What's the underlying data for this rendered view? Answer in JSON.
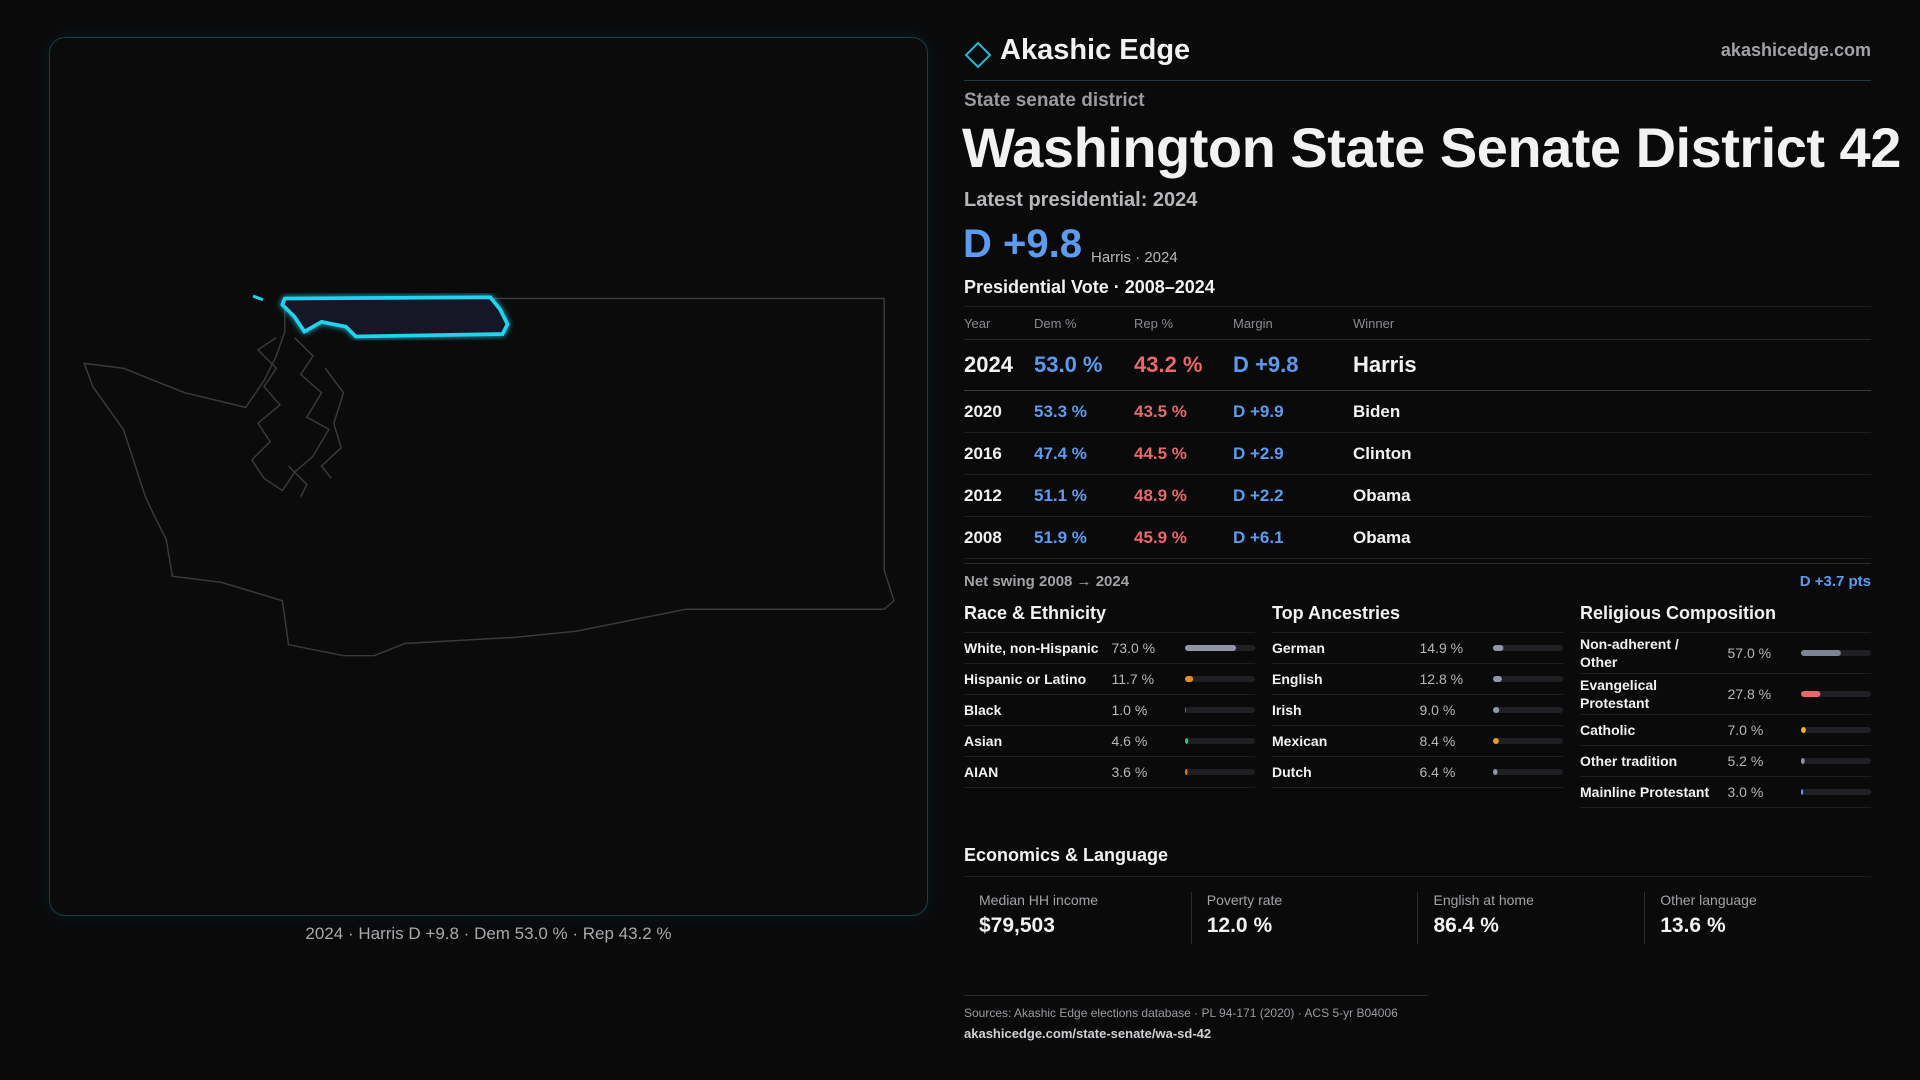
{
  "header": {
    "brand": "Akashic Edge",
    "site": "akashicedge.com"
  },
  "district": {
    "kicker": "State senate district",
    "title": "Washington State Senate District 42",
    "subtitle": "Latest presidential: 2024",
    "margin": "D +9.8",
    "margin_note": "Harris · 2024"
  },
  "map": {
    "caption": "2024 · Harris D +9.8 · Dem 53.0 % · Rep 43.2 %"
  },
  "vote_table": {
    "title": "Presidential Vote · 2008–2024",
    "columns": [
      "Year",
      "Dem %",
      "Rep %",
      "Margin",
      "Winner"
    ],
    "rows": [
      [
        "2024",
        "53.0 %",
        "43.2 %",
        "D +9.8",
        "Harris"
      ],
      [
        "2020",
        "53.3 %",
        "43.5 %",
        "D +9.9",
        "Biden"
      ],
      [
        "2016",
        "47.4 %",
        "44.5 %",
        "D +2.9",
        "Clinton"
      ],
      [
        "2012",
        "51.1 %",
        "48.9 %",
        "D +2.2",
        "Obama"
      ],
      [
        "2008",
        "51.9 %",
        "45.9 %",
        "D +6.1",
        "Obama"
      ]
    ]
  },
  "swing": {
    "label": "Net swing 2008 → 2024",
    "value": "D +3.7 pts"
  },
  "composition": [
    {
      "title": "Race & Ethnicity",
      "items": [
        {
          "label": "White, non-Hispanic",
          "value": 73.0,
          "value_label": "73.0 %",
          "color": "#8f97a8"
        },
        {
          "label": "Hispanic or Latino",
          "value": 11.7,
          "value_label": "11.7 %",
          "color": "#e0902a"
        },
        {
          "label": "Black",
          "value": 1.0,
          "value_label": "1.0 %",
          "color": "#5b9cf0"
        },
        {
          "label": "Asian",
          "value": 4.6,
          "value_label": "4.6 %",
          "color": "#34c27a"
        },
        {
          "label": "AIAN",
          "value": 3.6,
          "value_label": "3.6 %",
          "color": "#e07a2a"
        }
      ]
    },
    {
      "title": "Top Ancestries",
      "items": [
        {
          "label": "German",
          "value": 14.9,
          "value_label": "14.9 %",
          "color": "#8f97a8"
        },
        {
          "label": "English",
          "value": 12.8,
          "value_label": "12.8 %",
          "color": "#8f97a8"
        },
        {
          "label": "Irish",
          "value": 9.0,
          "value_label": "9.0 %",
          "color": "#8f97a8"
        },
        {
          "label": "Mexican",
          "value": 8.4,
          "value_label": "8.4 %",
          "color": "#e0a02a"
        },
        {
          "label": "Dutch",
          "value": 6.4,
          "value_label": "6.4 %",
          "color": "#8f97a8"
        }
      ]
    },
    {
      "title": "Religious Composition",
      "items": [
        {
          "label": "Non-adherent / Other",
          "value": 57.0,
          "value_label": "57.0 %",
          "color": "#7d8494"
        },
        {
          "label": "Evangelical Protestant",
          "value": 27.8,
          "value_label": "27.8 %",
          "color": "#e8686b"
        },
        {
          "label": "Catholic",
          "value": 7.0,
          "value_label": "7.0 %",
          "color": "#e8b42a"
        },
        {
          "label": "Other tradition",
          "value": 5.2,
          "value_label": "5.2 %",
          "color": "#8f97a8"
        },
        {
          "label": "Mainline Protestant",
          "value": 3.0,
          "value_label": "3.0 %",
          "color": "#5b9cf0"
        }
      ]
    }
  ],
  "economics": {
    "title": "Economics & Language",
    "stats": [
      {
        "label": "Median HH income",
        "value": "$79,503"
      },
      {
        "label": "Poverty rate",
        "value": "12.0 %"
      },
      {
        "label": "English at home",
        "value": "86.4 %"
      },
      {
        "label": "Other language",
        "value": "13.6 %"
      }
    ]
  },
  "footer": {
    "sources": "Sources: Akashic Edge elections database · PL 94-171 (2020) · ACS 5-yr B04006",
    "url": "akashicedge.com/state-senate/wa-sd-42"
  }
}
